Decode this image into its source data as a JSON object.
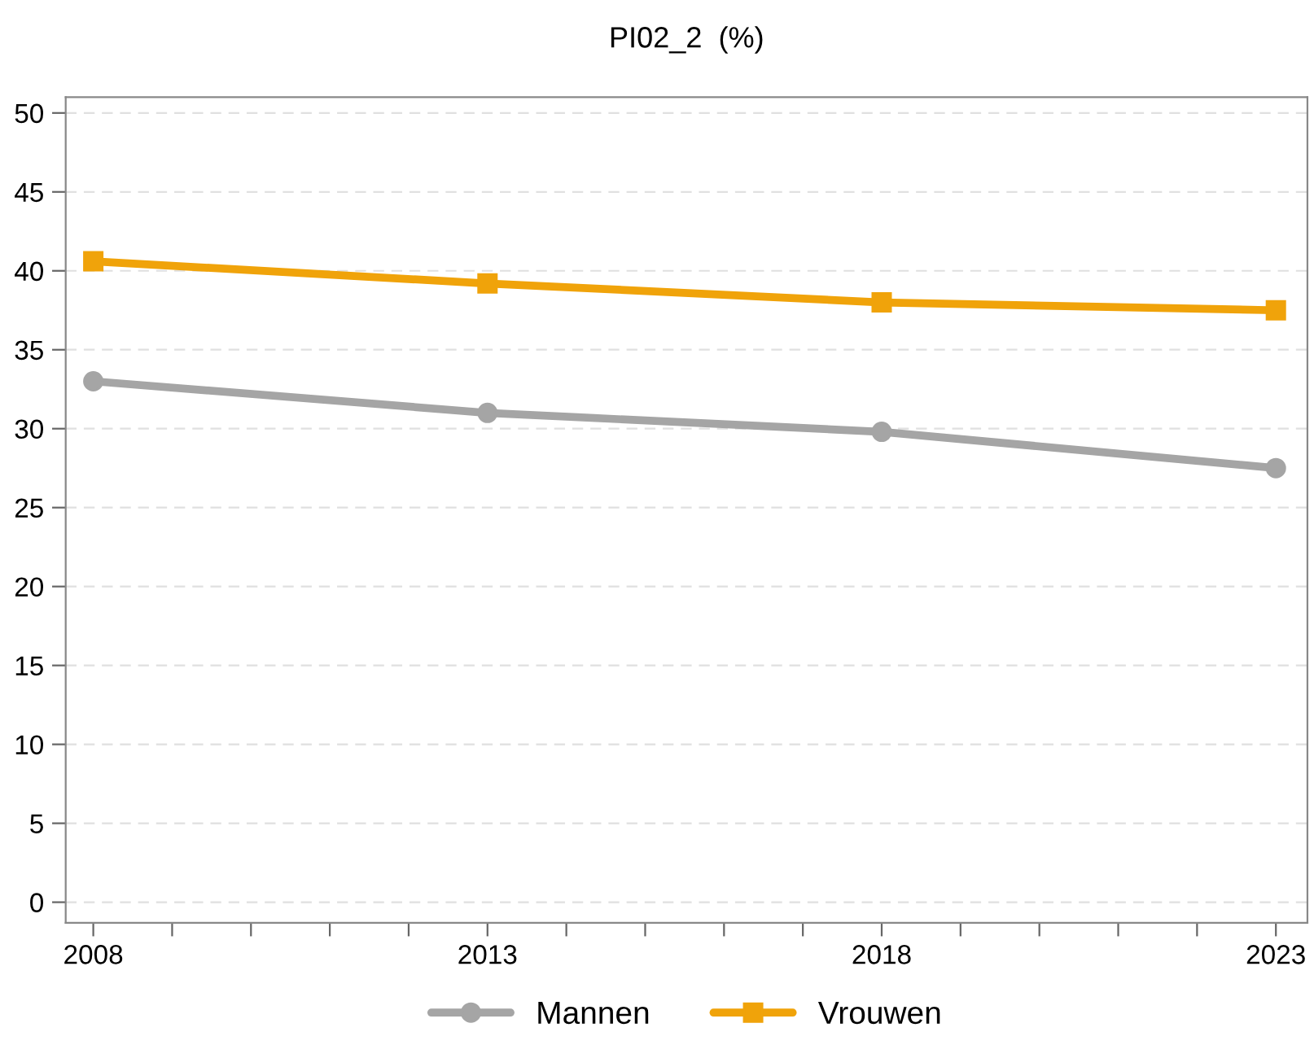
{
  "chart_data": {
    "type": "line",
    "title": "PI02_2  (%)",
    "x": [
      2008,
      2013,
      2018,
      2023
    ],
    "series": [
      {
        "name": "Mannen",
        "color": "#a5a5a5",
        "marker": "circle",
        "values": [
          33.0,
          31.0,
          29.8,
          27.5
        ]
      },
      {
        "name": "Vrouwen",
        "color": "#f0a30a",
        "marker": "square",
        "values": [
          40.6,
          39.2,
          38.0,
          37.5
        ]
      }
    ],
    "xlim": [
      2007.65,
      2023.4
    ],
    "xticks": [
      2008,
      {
        "value": 2009,
        "label": null
      },
      {
        "value": 2010,
        "label": null
      },
      {
        "value": 2011,
        "label": null
      },
      {
        "value": 2012,
        "label": null
      },
      2013,
      {
        "value": 2014,
        "label": null
      },
      {
        "value": 2015,
        "label": null
      },
      {
        "value": 2016,
        "label": null
      },
      {
        "value": 2017,
        "label": null
      },
      2018,
      {
        "value": 2019,
        "label": null
      },
      {
        "value": 2020,
        "label": null
      },
      {
        "value": 2021,
        "label": null
      },
      {
        "value": 2022,
        "label": null
      },
      2023
    ],
    "ylim": [
      -1.3,
      51
    ],
    "yticks": [
      0,
      5,
      10,
      15,
      20,
      25,
      30,
      35,
      40,
      45,
      50
    ],
    "grid": "y",
    "legend": "bottom",
    "line_style": "solid"
  }
}
